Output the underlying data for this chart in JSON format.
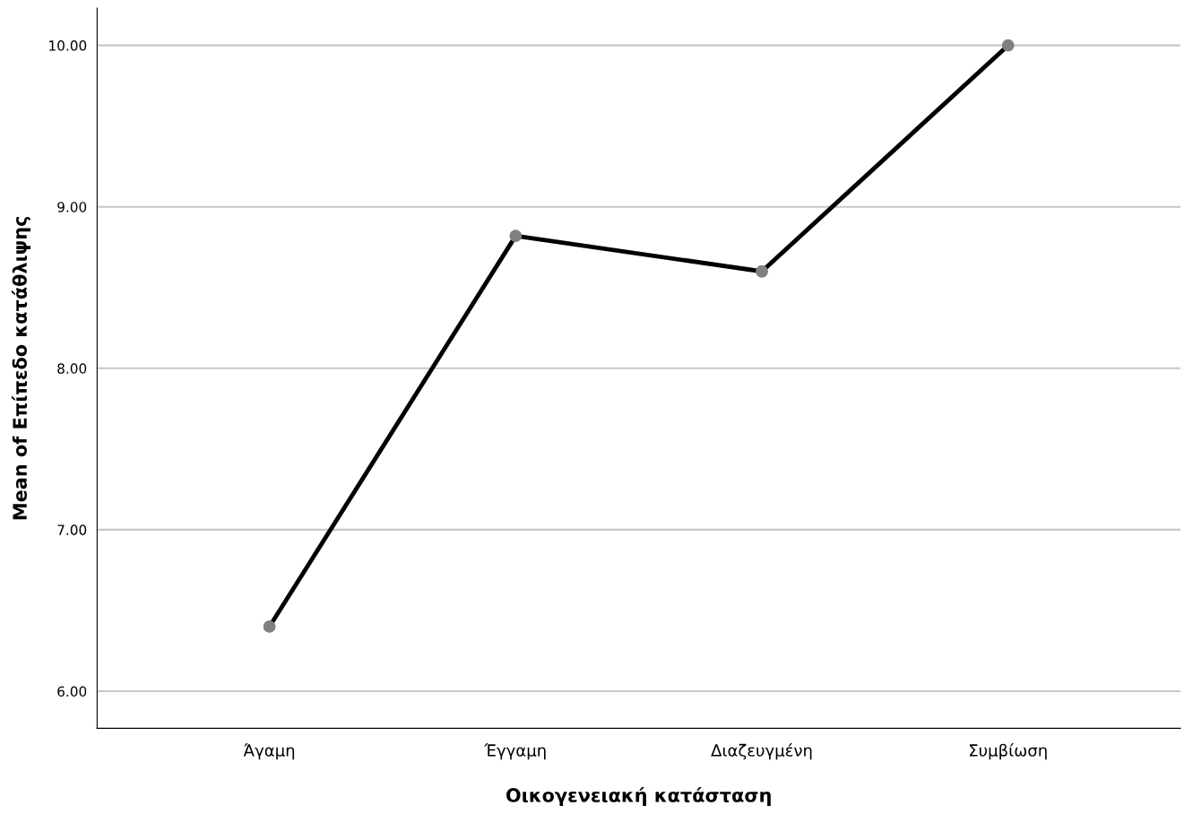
{
  "chart_data": {
    "type": "line",
    "xlabel": "Οικογενειακή κατάσταση",
    "ylabel": "Mean of Επίπεδο κατάθλιψης",
    "categories": [
      "Άγαμη",
      "Έγγαμη",
      "Διαζευγμένη",
      "Συμβίωση"
    ],
    "series": [
      {
        "color": "#000000",
        "colors": [
          "#808080",
          "#808080",
          "#808080",
          "#808080"
        ],
        "values": [
          6.4,
          8.82,
          8.6,
          10.0
        ]
      }
    ],
    "ylim": [
      5.77,
      10.23
    ],
    "yticks": [
      {
        "value": 6,
        "label": "6.00"
      },
      {
        "value": 7,
        "label": "7.00"
      },
      {
        "value": 8,
        "label": "8.00"
      },
      {
        "value": 9,
        "label": "9.00"
      },
      {
        "value": 10,
        "label": "10.00"
      }
    ],
    "grid": "y",
    "marker": "circle",
    "line_style": "solid",
    "legend": false
  }
}
